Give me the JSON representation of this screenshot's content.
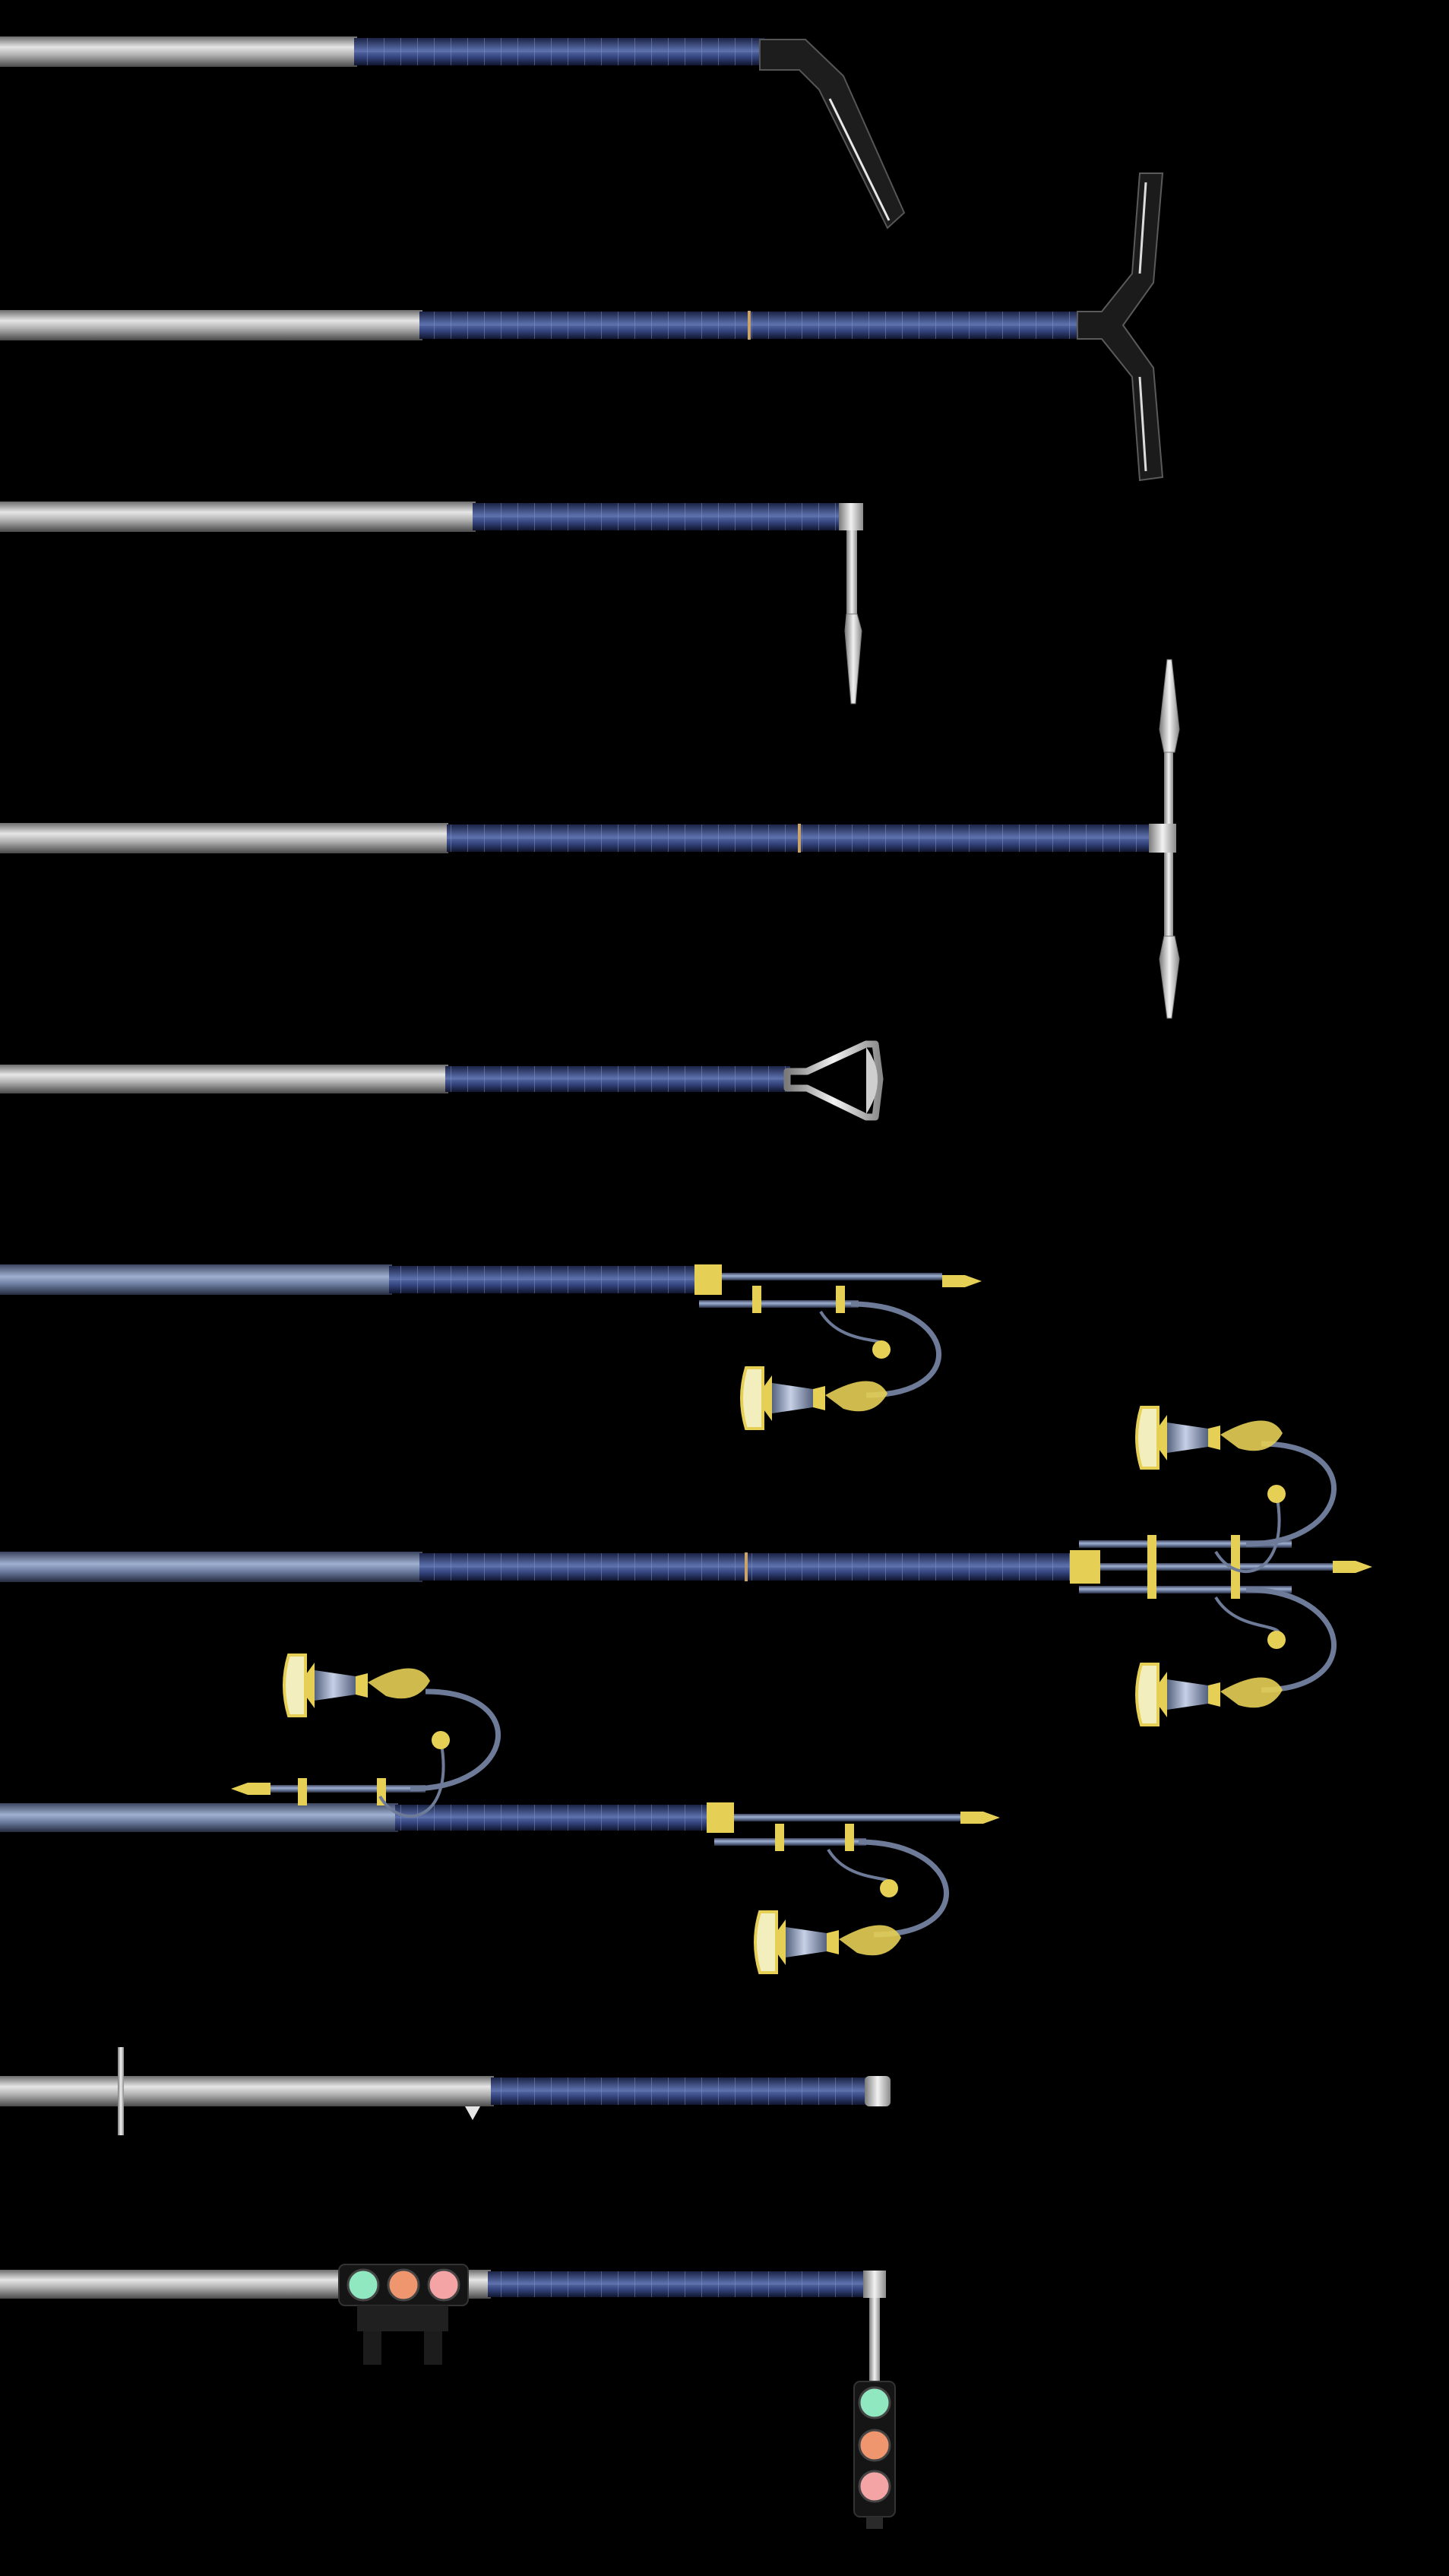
{
  "page": {
    "background": "#000000",
    "subject": "solar-street-light-pole-catalog"
  },
  "colors": {
    "pole_light": "#d8d8d8",
    "pole_mid": "#9a9a9a",
    "pole_dark": "#5a5a5a",
    "solar_panel": "#2f3f78",
    "solar_panel_grid": "#7d8fc4",
    "black_arm": "#1a1a1a",
    "steel_blue": "#6f7f9e",
    "brass": "#e6cf55",
    "lamp_glass": "#f3eebe",
    "signal_green": "#8fe8c0",
    "signal_amber": "#f0966e",
    "signal_red": "#f4a4a4"
  },
  "poles": [
    {
      "id": 1,
      "style": "single-bent-black-arm",
      "panel_sections": 1
    },
    {
      "id": 2,
      "style": "double-y-black-arm",
      "panel_sections": 2
    },
    {
      "id": 3,
      "style": "single-drop-blade-luminaire",
      "panel_sections": 1
    },
    {
      "id": 4,
      "style": "double-blade-luminaire",
      "panel_sections": 2
    },
    {
      "id": 5,
      "style": "triangular-floodlight-head",
      "panel_sections": 1
    },
    {
      "id": 6,
      "style": "ornamental-single-lantern",
      "panel_sections": 1
    },
    {
      "id": 7,
      "style": "ornamental-double-lantern",
      "panel_sections": 2
    },
    {
      "id": 8,
      "style": "ornamental-twin-opposed-lanterns",
      "panel_sections": 1
    },
    {
      "id": 9,
      "style": "integrated-end-light-with-cross-bracket",
      "panel_sections": 1
    },
    {
      "id": 10,
      "style": "traffic-signal-pole",
      "panel_sections": 1
    }
  ],
  "icons": {
    "signal_light": "circle-lamp",
    "lantern": "bell-lantern",
    "finial": "spear-finial"
  }
}
